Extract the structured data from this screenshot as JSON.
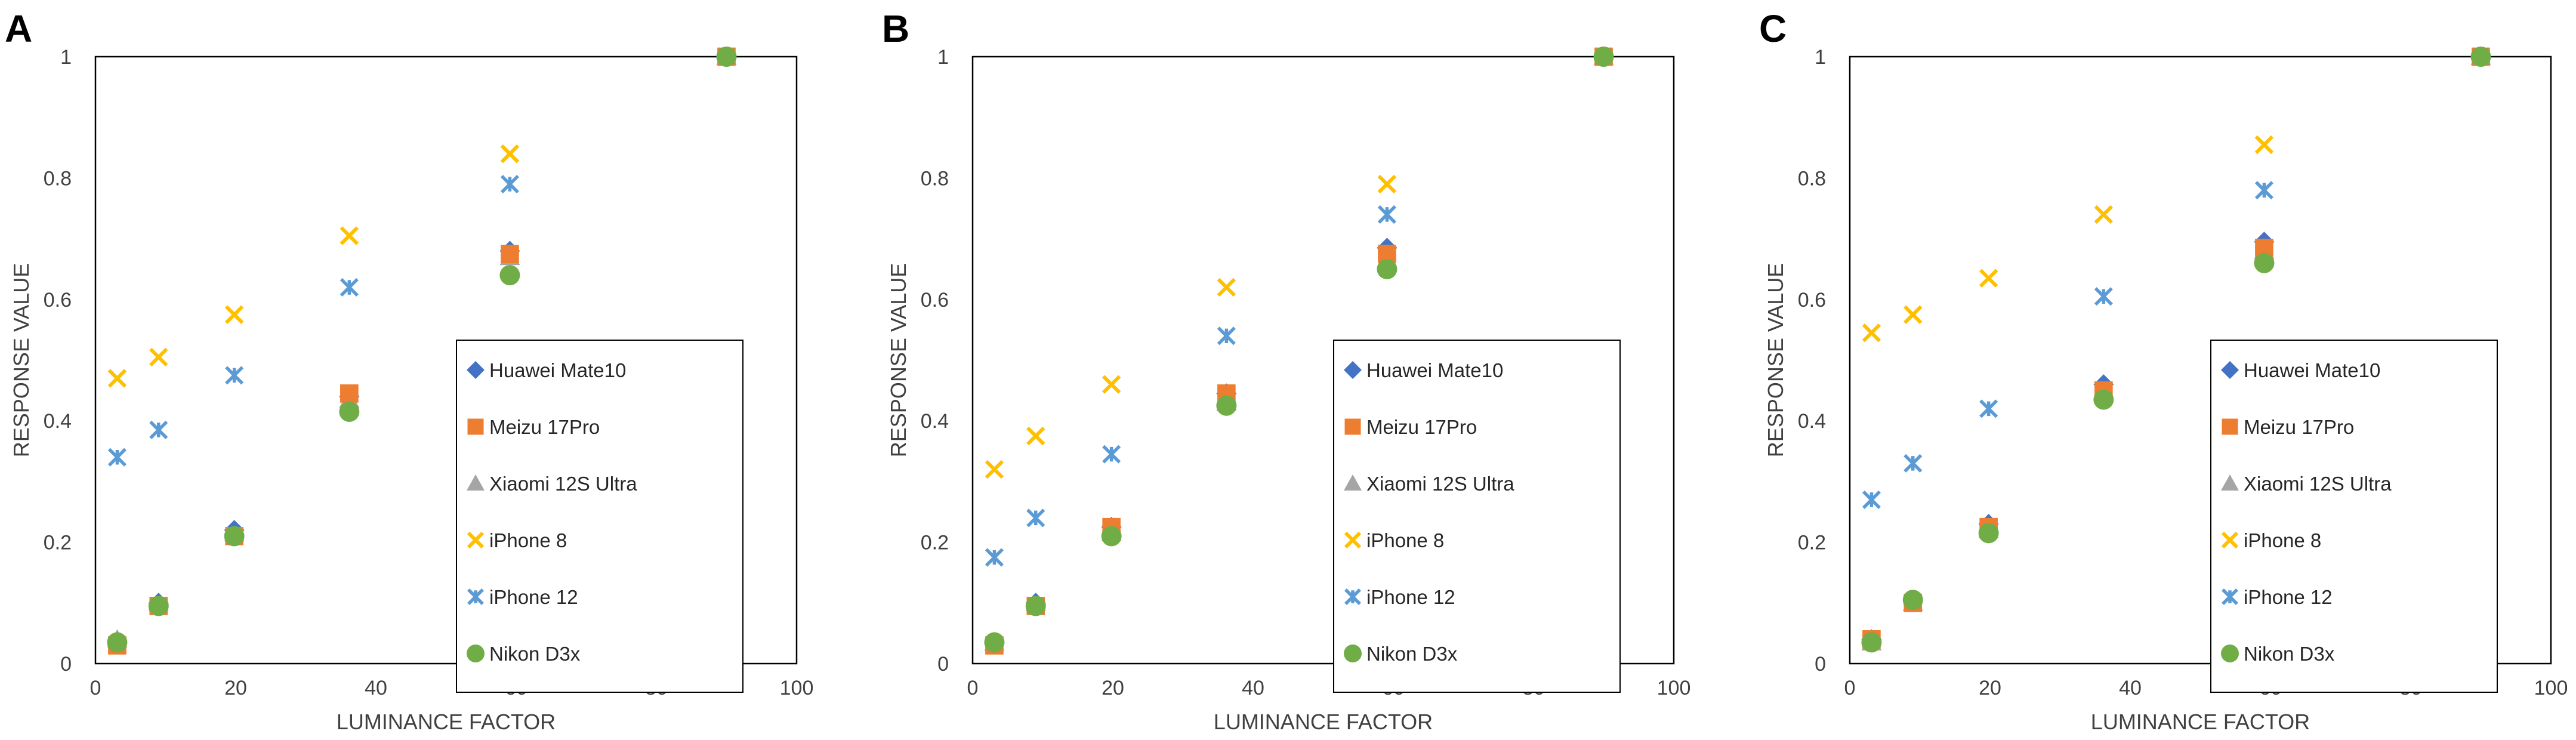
{
  "series_styles": {
    "Huawei Mate10": {
      "marker": "diamond",
      "color": "#4472C4"
    },
    "Meizu 17Pro": {
      "marker": "square",
      "color": "#ED7D31"
    },
    "Xiaomi 12S Ultra": {
      "marker": "triangle",
      "color": "#A5A5A5"
    },
    "iPhone 8": {
      "marker": "x",
      "color": "#FFC000"
    },
    "iPhone 12": {
      "marker": "star",
      "color": "#5B9BD5"
    },
    "Nikon D3x": {
      "marker": "circle",
      "color": "#70AD47"
    }
  },
  "chart_data": [
    {
      "panel": "A",
      "type": "scatter",
      "xlabel": "LUMINANCE FACTOR",
      "ylabel": "RESPONSE VALUE",
      "xlim": [
        0,
        100
      ],
      "ylim": [
        0,
        1
      ],
      "xticks": [
        "0",
        "20",
        "40",
        "60",
        "80",
        "100"
      ],
      "yticks": [
        "0",
        "0.2",
        "0.4",
        "0.6",
        "0.8",
        "1"
      ],
      "grid": false,
      "legend_position": "lower-right",
      "series": [
        {
          "name": "Huawei Mate10",
          "points": [
            [
              3.1,
              0.035
            ],
            [
              9,
              0.1
            ],
            [
              19.8,
              0.22
            ],
            [
              36.2,
              0.44
            ],
            [
              59.1,
              0.68
            ],
            [
              90,
              1.0
            ]
          ]
        },
        {
          "name": "Meizu 17Pro",
          "points": [
            [
              3.1,
              0.03
            ],
            [
              9,
              0.095
            ],
            [
              19.8,
              0.21
            ],
            [
              36.2,
              0.445
            ],
            [
              59.1,
              0.675
            ],
            [
              90,
              1.0
            ]
          ]
        },
        {
          "name": "Xiaomi 12S Ultra",
          "points": [
            [
              3.1,
              0.04
            ],
            [
              9,
              0.1
            ],
            [
              19.8,
              0.215
            ],
            [
              36.2,
              0.435
            ],
            [
              59.1,
              0.67
            ],
            [
              90,
              1.0
            ]
          ]
        },
        {
          "name": "iPhone 8",
          "points": [
            [
              3.1,
              0.47
            ],
            [
              9,
              0.505
            ],
            [
              19.8,
              0.575
            ],
            [
              36.2,
              0.705
            ],
            [
              59.1,
              0.84
            ],
            [
              90,
              1.0
            ]
          ]
        },
        {
          "name": "iPhone 12",
          "points": [
            [
              3.1,
              0.34
            ],
            [
              9,
              0.385
            ],
            [
              19.8,
              0.475
            ],
            [
              36.2,
              0.62
            ],
            [
              59.1,
              0.79
            ],
            [
              90,
              1.0
            ]
          ]
        },
        {
          "name": "Nikon D3x",
          "points": [
            [
              3.1,
              0.035
            ],
            [
              9,
              0.095
            ],
            [
              19.8,
              0.21
            ],
            [
              36.2,
              0.415
            ],
            [
              59.1,
              0.64
            ],
            [
              90,
              1.0
            ]
          ]
        }
      ]
    },
    {
      "panel": "B",
      "type": "scatter",
      "xlabel": "LUMINANCE FACTOR",
      "ylabel": "RESPONSE VALUE",
      "xlim": [
        0,
        100
      ],
      "ylim": [
        0,
        1
      ],
      "xticks": [
        "0",
        "20",
        "40",
        "60",
        "80",
        "100"
      ],
      "yticks": [
        "0",
        "0.2",
        "0.4",
        "0.6",
        "0.8",
        "1"
      ],
      "grid": false,
      "legend_position": "lower-right",
      "series": [
        {
          "name": "Huawei Mate10",
          "points": [
            [
              3.1,
              0.035
            ],
            [
              9,
              0.1
            ],
            [
              19.8,
              0.225
            ],
            [
              36.2,
              0.445
            ],
            [
              59.1,
              0.685
            ],
            [
              90,
              1.0
            ]
          ]
        },
        {
          "name": "Meizu 17Pro",
          "points": [
            [
              3.1,
              0.03
            ],
            [
              9,
              0.095
            ],
            [
              19.8,
              0.225
            ],
            [
              36.2,
              0.445
            ],
            [
              59.1,
              0.675
            ],
            [
              90,
              1.0
            ]
          ]
        },
        {
          "name": "Xiaomi 12S Ultra",
          "points": [
            [
              3.1,
              0.035
            ],
            [
              9,
              0.1
            ],
            [
              19.8,
              0.215
            ],
            [
              36.2,
              0.43
            ],
            [
              59.1,
              0.665
            ],
            [
              90,
              1.0
            ]
          ]
        },
        {
          "name": "iPhone 8",
          "points": [
            [
              3.1,
              0.32
            ],
            [
              9,
              0.375
            ],
            [
              19.8,
              0.46
            ],
            [
              36.2,
              0.62
            ],
            [
              59.1,
              0.79
            ],
            [
              90,
              1.0
            ]
          ]
        },
        {
          "name": "iPhone 12",
          "points": [
            [
              3.1,
              0.175
            ],
            [
              9,
              0.24
            ],
            [
              19.8,
              0.345
            ],
            [
              36.2,
              0.54
            ],
            [
              59.1,
              0.74
            ],
            [
              90,
              1.0
            ]
          ]
        },
        {
          "name": "Nikon D3x",
          "points": [
            [
              3.1,
              0.035
            ],
            [
              9,
              0.095
            ],
            [
              19.8,
              0.21
            ],
            [
              36.2,
              0.425
            ],
            [
              59.1,
              0.65
            ],
            [
              90,
              1.0
            ]
          ]
        }
      ]
    },
    {
      "panel": "C",
      "type": "scatter",
      "xlabel": "LUMINANCE FACTOR",
      "ylabel": "RESPONSE VALUE",
      "xlim": [
        0,
        100
      ],
      "ylim": [
        0,
        1
      ],
      "xticks": [
        "0",
        "20",
        "40",
        "60",
        "80",
        "100"
      ],
      "yticks": [
        "0",
        "0.2",
        "0.4",
        "0.6",
        "0.8",
        "1"
      ],
      "grid": false,
      "legend_position": "lower-right",
      "series": [
        {
          "name": "Huawei Mate10",
          "points": [
            [
              3.1,
              0.04
            ],
            [
              9,
              0.105
            ],
            [
              19.8,
              0.23
            ],
            [
              36.2,
              0.46
            ],
            [
              59.1,
              0.695
            ],
            [
              90,
              1.0
            ]
          ]
        },
        {
          "name": "Meizu 17Pro",
          "points": [
            [
              3.1,
              0.04
            ],
            [
              9,
              0.1
            ],
            [
              19.8,
              0.225
            ],
            [
              36.2,
              0.45
            ],
            [
              59.1,
              0.685
            ],
            [
              90,
              1.0
            ]
          ]
        },
        {
          "name": "Xiaomi 12S Ultra",
          "points": [
            [
              3.1,
              0.035
            ],
            [
              9,
              0.1
            ],
            [
              19.8,
              0.22
            ],
            [
              36.2,
              0.445
            ],
            [
              59.1,
              0.68
            ],
            [
              90,
              1.0
            ]
          ]
        },
        {
          "name": "iPhone 8",
          "points": [
            [
              3.1,
              0.545
            ],
            [
              9,
              0.575
            ],
            [
              19.8,
              0.635
            ],
            [
              36.2,
              0.74
            ],
            [
              59.1,
              0.855
            ],
            [
              90,
              1.0
            ]
          ]
        },
        {
          "name": "iPhone 12",
          "points": [
            [
              3.1,
              0.27
            ],
            [
              9,
              0.33
            ],
            [
              19.8,
              0.42
            ],
            [
              36.2,
              0.605
            ],
            [
              59.1,
              0.78
            ],
            [
              90,
              1.0
            ]
          ]
        },
        {
          "name": "Nikon D3x",
          "points": [
            [
              3.1,
              0.035
            ],
            [
              9,
              0.105
            ],
            [
              19.8,
              0.215
            ],
            [
              36.2,
              0.435
            ],
            [
              59.1,
              0.66
            ],
            [
              90,
              1.0
            ]
          ]
        }
      ]
    }
  ]
}
